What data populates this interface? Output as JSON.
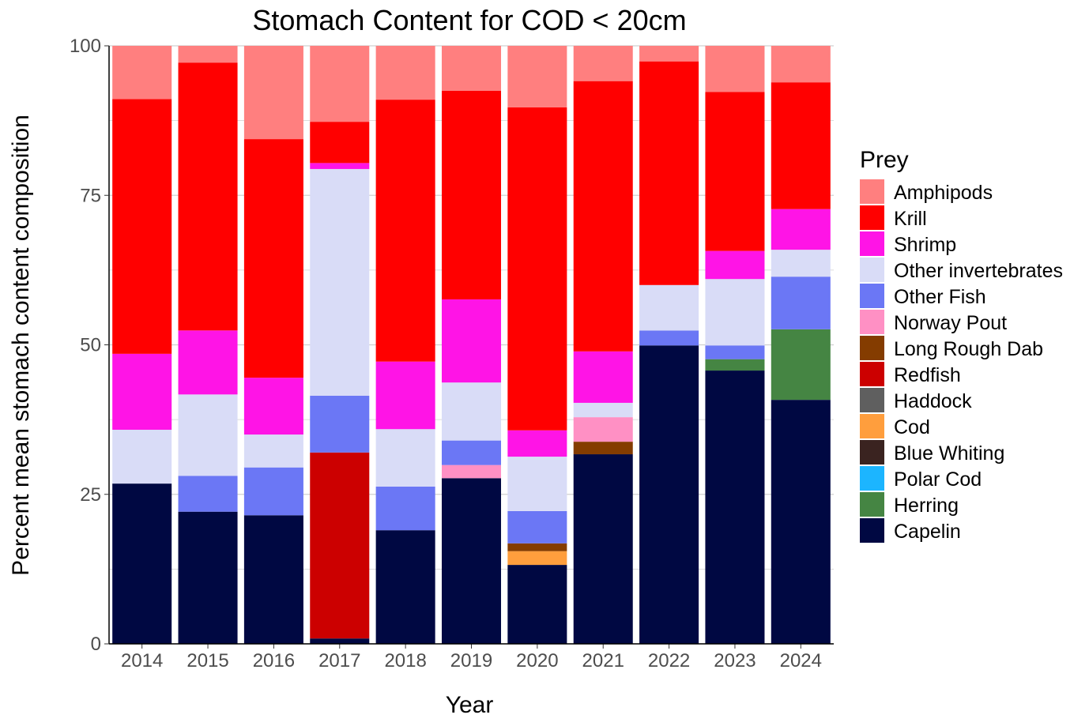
{
  "chart_data": {
    "type": "bar",
    "stacked": true,
    "title": "Stomach Content for COD < 20cm",
    "xlabel": "Year",
    "ylabel": "Percent mean stomach content composition",
    "ylim": [
      0,
      100
    ],
    "yticks": [
      "0",
      "25",
      "50",
      "75",
      "100"
    ],
    "grid": true,
    "legend": {
      "title": "Prey",
      "placement": "right"
    },
    "categories": [
      "2014",
      "2015",
      "2016",
      "2017",
      "2018",
      "2019",
      "2020",
      "2021",
      "2022",
      "2023",
      "2024"
    ],
    "series": [
      {
        "name": "Capelin",
        "color": "#000842",
        "values": [
          26.8,
          22.1,
          21.5,
          0.9,
          19.0,
          27.7,
          13.2,
          31.7,
          49.9,
          45.7,
          40.8
        ]
      },
      {
        "name": "Herring",
        "color": "#458543",
        "values": [
          0,
          0,
          0,
          0,
          0,
          0,
          0,
          0,
          0,
          1.9,
          11.8
        ]
      },
      {
        "name": "Polar Cod",
        "color": "#1CB5FF",
        "values": [
          0,
          0,
          0,
          0,
          0,
          0,
          0,
          0,
          0,
          0,
          0
        ]
      },
      {
        "name": "Blue Whiting",
        "color": "#3A2320",
        "values": [
          0,
          0,
          0,
          0,
          0,
          0,
          0,
          0,
          0,
          0,
          0
        ]
      },
      {
        "name": "Cod",
        "color": "#FF9E3D",
        "values": [
          0,
          0,
          0,
          0,
          0,
          0,
          2.3,
          0,
          0,
          0,
          0
        ]
      },
      {
        "name": "Haddock",
        "color": "#5F5F5F",
        "values": [
          0,
          0,
          0,
          0,
          0,
          0,
          0,
          0,
          0,
          0,
          0
        ]
      },
      {
        "name": "Redfish",
        "color": "#CC0000",
        "values": [
          0,
          0,
          0,
          31.1,
          0,
          0,
          0,
          0,
          0,
          0,
          0
        ]
      },
      {
        "name": "Long Rough Dab",
        "color": "#843C00",
        "values": [
          0,
          0,
          0,
          0,
          0,
          0,
          1.3,
          2.1,
          0,
          0,
          0
        ]
      },
      {
        "name": "Norway Pout",
        "color": "#FF90C4",
        "values": [
          0,
          0,
          0,
          0,
          0,
          2.2,
          0,
          4.1,
          0,
          0,
          0
        ]
      },
      {
        "name": "Other Fish",
        "color": "#6B77F5",
        "values": [
          0,
          6.0,
          8.0,
          9.5,
          7.3,
          4.1,
          5.4,
          0,
          2.5,
          2.3,
          8.8
        ]
      },
      {
        "name": "Other invertebrates",
        "color": "#D9DCF7",
        "values": [
          9.0,
          13.6,
          5.5,
          37.9,
          9.6,
          9.7,
          9.1,
          2.4,
          7.6,
          11.1,
          4.5
        ]
      },
      {
        "name": "Shrimp",
        "color": "#FF14E6",
        "values": [
          12.7,
          10.7,
          9.5,
          1.0,
          11.3,
          13.9,
          4.4,
          8.6,
          0,
          4.7,
          6.8
        ]
      },
      {
        "name": "Krill",
        "color": "#FF0000",
        "values": [
          42.6,
          44.8,
          39.9,
          6.9,
          43.8,
          34.9,
          54.0,
          45.2,
          37.4,
          26.6,
          21.2
        ]
      },
      {
        "name": "Amphipods",
        "color": "#FF7F7F",
        "values": [
          8.9,
          2.8,
          15.6,
          12.7,
          9.0,
          7.5,
          10.3,
          5.9,
          2.6,
          7.7,
          6.1
        ]
      }
    ]
  }
}
